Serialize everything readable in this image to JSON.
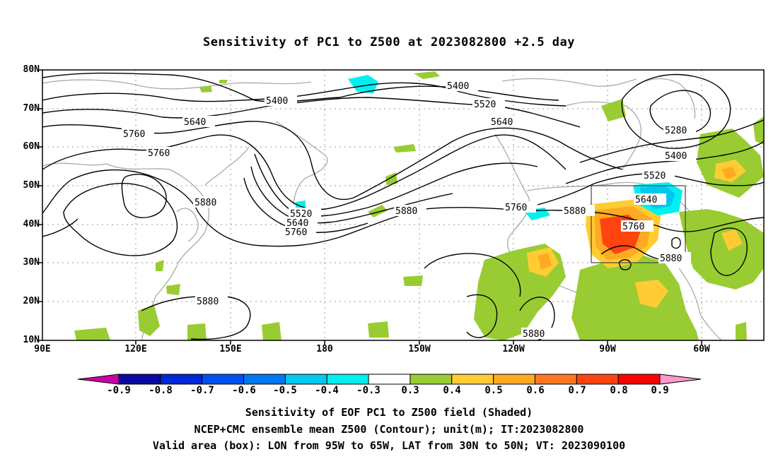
{
  "title": "Sensitivity of PC1 to Z500 at 2023082800 +2.5 day",
  "lat_labels": [
    "80N",
    "70N",
    "60N",
    "50N",
    "40N",
    "30N",
    "20N",
    "10N"
  ],
  "lon_labels": [
    "90E",
    "120E",
    "150E",
    "180",
    "150W",
    "120W",
    "90W",
    "60W"
  ],
  "contour_labels": [
    "5400",
    "5400",
    "5520",
    "5640",
    "5640",
    "5760",
    "5760",
    "5880",
    "5520",
    "5640",
    "5760",
    "5880",
    "5760",
    "5880",
    "5280",
    "5400",
    "5520",
    "5640",
    "5760",
    "5880",
    "5880",
    "5880"
  ],
  "colorbar": {
    "labels": [
      "-0.9",
      "-0.8",
      "-0.7",
      "-0.6",
      "-0.5",
      "-0.4",
      "-0.3",
      "0.3",
      "0.4",
      "0.5",
      "0.6",
      "0.7",
      "0.8",
      "0.9"
    ],
    "colors": [
      "#cc00aa",
      "#0a0aa0",
      "#0028d8",
      "#0050f0",
      "#0078f0",
      "#00c8f0",
      "#00f0f0",
      "#ffffff",
      "#99cc33",
      "#ffcc33",
      "#ffaa22",
      "#ff7722",
      "#ff4411",
      "#ff0000",
      "#ff99cc"
    ]
  },
  "captions": [
    "Sensitivity of EOF PC1 to Z500 field (Shaded)",
    "NCEP+CMC ensemble mean Z500 (Contour); unit(m); IT:2023082800",
    "Valid area (box): LON from 95W to 65W, LAT from 30N to 50N; VT: 2023090100"
  ]
}
